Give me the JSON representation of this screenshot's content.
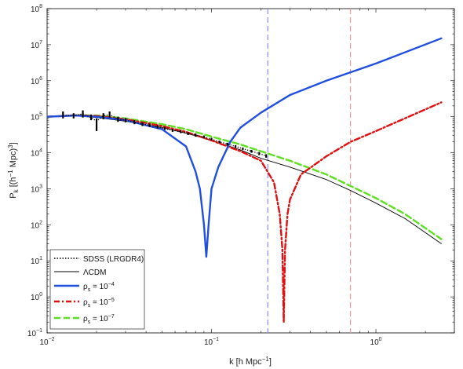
{
  "chart_data": {
    "type": "line",
    "title": "",
    "xlabel": "k [h Mpc",
    "xlabel_sup": "−1",
    "xlabel_close": "]",
    "ylabel": "P",
    "ylabel_sub": "k",
    "ylabel_rest": " [(h",
    "ylabel_sup1": "−1",
    "ylabel_rest2": " Mpc)",
    "ylabel_sup2": "3",
    "ylabel_close": "]",
    "x_scale": "log",
    "y_scale": "log",
    "xlim": [
      0.01,
      3.0
    ],
    "ylim": [
      0.1,
      100000000
    ],
    "x_ticks": [
      {
        "value": 0.01,
        "base": "10",
        "exp": "−2"
      },
      {
        "value": 0.1,
        "base": "10",
        "exp": "−1"
      },
      {
        "value": 1,
        "base": "10",
        "exp": "0"
      }
    ],
    "y_ticks": [
      {
        "value": 0.1,
        "base": "10",
        "exp": "−1"
      },
      {
        "value": 1,
        "base": "10",
        "exp": "0"
      },
      {
        "value": 10,
        "base": "10",
        "exp": "1"
      },
      {
        "value": 100,
        "base": "10",
        "exp": "2"
      },
      {
        "value": 1000,
        "base": "10",
        "exp": "3"
      },
      {
        "value": 10000,
        "base": "10",
        "exp": "4"
      },
      {
        "value": 100000,
        "base": "10",
        "exp": "5"
      },
      {
        "value": 1000000,
        "base": "10",
        "exp": "6"
      },
      {
        "value": 10000000,
        "base": "10",
        "exp": "7"
      },
      {
        "value": 100000000,
        "base": "10",
        "exp": "8"
      }
    ],
    "grid": false,
    "legend_position": "bottom-left",
    "vertical_lines": [
      {
        "x": 0.22,
        "color": "#8f8fee"
      },
      {
        "x": 0.7,
        "color": "#ee9999"
      }
    ],
    "series": [
      {
        "name": "SDSS (LRGDR4)",
        "kind": "errorbar",
        "color": "#000000",
        "points": [
          {
            "x": 0.0125,
            "y": 110000,
            "lo": 90000,
            "hi": 140000
          },
          {
            "x": 0.0145,
            "y": 105000,
            "lo": 90000,
            "hi": 125000
          },
          {
            "x": 0.0165,
            "y": 120000,
            "lo": 95000,
            "hi": 150000
          },
          {
            "x": 0.0185,
            "y": 95000,
            "lo": 80000,
            "hi": 115000
          },
          {
            "x": 0.02,
            "y": 75000,
            "lo": 40000,
            "hi": 90000
          },
          {
            "x": 0.022,
            "y": 105000,
            "lo": 85000,
            "hi": 125000
          },
          {
            "x": 0.024,
            "y": 115000,
            "lo": 95000,
            "hi": 140000
          },
          {
            "x": 0.027,
            "y": 85000,
            "lo": 72000,
            "hi": 100000
          },
          {
            "x": 0.03,
            "y": 80000,
            "lo": 70000,
            "hi": 92000
          },
          {
            "x": 0.034,
            "y": 70000,
            "lo": 62000,
            "hi": 80000
          },
          {
            "x": 0.038,
            "y": 62000,
            "lo": 55000,
            "hi": 70000
          },
          {
            "x": 0.042,
            "y": 58000,
            "lo": 52000,
            "hi": 65000
          },
          {
            "x": 0.047,
            "y": 52000,
            "lo": 47000,
            "hi": 58000
          },
          {
            "x": 0.052,
            "y": 47000,
            "lo": 43000,
            "hi": 52000
          },
          {
            "x": 0.058,
            "y": 42000,
            "lo": 38000,
            "hi": 46000
          },
          {
            "x": 0.065,
            "y": 38000,
            "lo": 35000,
            "hi": 42000
          },
          {
            "x": 0.072,
            "y": 34000,
            "lo": 31000,
            "hi": 37000
          },
          {
            "x": 0.08,
            "y": 31000,
            "lo": 28000,
            "hi": 34000
          },
          {
            "x": 0.09,
            "y": 27000,
            "lo": 25000,
            "hi": 30000
          },
          {
            "x": 0.1,
            "y": 24000,
            "lo": 22000,
            "hi": 26000
          },
          {
            "x": 0.112,
            "y": 20000,
            "lo": 18500,
            "hi": 21500
          },
          {
            "x": 0.125,
            "y": 17500,
            "lo": 16000,
            "hi": 19000
          },
          {
            "x": 0.14,
            "y": 15000,
            "lo": 13800,
            "hi": 16200
          },
          {
            "x": 0.155,
            "y": 13000,
            "lo": 12000,
            "hi": 14000
          },
          {
            "x": 0.175,
            "y": 11000,
            "lo": 10000,
            "hi": 12000
          },
          {
            "x": 0.195,
            "y": 9500,
            "lo": 8600,
            "hi": 10400
          },
          {
            "x": 0.215,
            "y": 8200,
            "lo": 7300,
            "hi": 9100
          }
        ]
      },
      {
        "name": "ΛCDM",
        "kind": "line",
        "color": "#000000",
        "dash": "",
        "width": 0.9,
        "x": [
          0.01,
          0.015,
          0.02,
          0.03,
          0.05,
          0.07,
          0.1,
          0.15,
          0.2,
          0.3,
          0.5,
          0.7,
          1.0,
          1.5,
          2.5
        ],
        "y": [
          100000,
          105000,
          95000,
          75000,
          50000,
          35000,
          22000,
          12000,
          7000,
          4000,
          1800,
          900,
          400,
          150,
          30
        ]
      },
      {
        "name": "ρ",
        "name_sub": "s",
        "name_rest": " = 10",
        "name_sup": "−4",
        "kind": "line",
        "color": "#1f4fe0",
        "dash": "",
        "width": 2.4,
        "x": [
          0.01,
          0.015,
          0.02,
          0.03,
          0.05,
          0.07,
          0.08,
          0.085,
          0.09,
          0.093,
          0.096,
          0.1,
          0.11,
          0.13,
          0.15,
          0.2,
          0.3,
          0.5,
          1.0,
          2.5
        ],
        "y": [
          100000,
          108000,
          100000,
          80000,
          45000,
          15000,
          3000,
          1000,
          100,
          13,
          100,
          1000,
          4000,
          20000,
          50000,
          130000,
          400000,
          1000000,
          3000000,
          15000000
        ]
      },
      {
        "name": "ρ",
        "name_sub": "s",
        "name_rest": " = 10",
        "name_sup": "−5",
        "kind": "line",
        "color": "#e01010",
        "dash": "7,3,2,3",
        "width": 2.4,
        "x": [
          0.01,
          0.015,
          0.02,
          0.03,
          0.05,
          0.07,
          0.1,
          0.15,
          0.2,
          0.24,
          0.26,
          0.27,
          0.275,
          0.28,
          0.29,
          0.3,
          0.35,
          0.5,
          0.7,
          1.0,
          2.5
        ],
        "y": [
          100000,
          110000,
          105000,
          85000,
          55000,
          38000,
          22000,
          11000,
          6000,
          1500,
          200,
          20,
          0.2,
          20,
          200,
          500,
          2500,
          8000,
          20000,
          40000,
          250000
        ]
      },
      {
        "name": "ρ",
        "name_sub": "s",
        "name_rest": " = 10",
        "name_sup": "−7",
        "kind": "line",
        "color": "#5ce020",
        "dash": "8,4",
        "width": 2.4,
        "x": [
          0.01,
          0.015,
          0.02,
          0.03,
          0.05,
          0.07,
          0.1,
          0.15,
          0.2,
          0.3,
          0.5,
          0.7,
          1.0,
          1.5,
          2.5
        ],
        "y": [
          100000,
          110000,
          108000,
          90000,
          62000,
          45000,
          28000,
          17000,
          11000,
          6000,
          2500,
          1200,
          550,
          200,
          40
        ]
      }
    ]
  }
}
